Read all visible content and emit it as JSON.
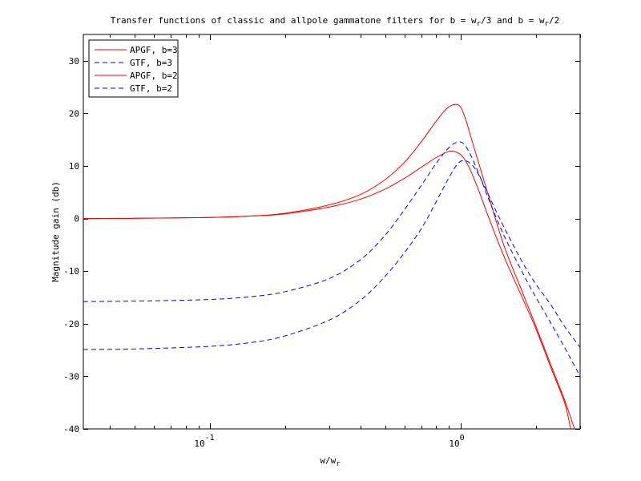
{
  "chart_data": {
    "type": "line",
    "title": "Transfer functions of classic and allpole gammatone filters for b = w_r/3 and b = w_r/2",
    "title_parts": {
      "pre": "Transfer functions of classic and allpole gammatone filters for b = w",
      "sub1": "r",
      "mid": "/3 and b = w",
      "sub2": "r",
      "post": "/2"
    },
    "xlabel": "w/w_r",
    "xlabel_parts": {
      "pre": "w/w",
      "sub": "r"
    },
    "ylabel": "Magnitude gain (db)",
    "xscale": "log",
    "xlim": [
      0.0313,
      3.0
    ],
    "ylim": [
      -40,
      35
    ],
    "grid": false,
    "legend_position": "upper left",
    "x_ticks": [
      {
        "value": 0.1,
        "base": "10",
        "exp": "-1"
      },
      {
        "value": 1.0,
        "base": "10",
        "exp": "0"
      }
    ],
    "y_ticks": [
      -40,
      -30,
      -20,
      -10,
      0,
      10,
      20,
      30
    ],
    "series": [
      {
        "name": "APGF, b=3",
        "color": "#ff0000",
        "dash": "solid",
        "x": [
          0.0313,
          0.05,
          0.1,
          0.15,
          0.2,
          0.3,
          0.4,
          0.5,
          0.6,
          0.7,
          0.8,
          0.88,
          0.95,
          1.0,
          1.05,
          1.1,
          1.2,
          1.3,
          1.5,
          1.8,
          2.0,
          2.3,
          2.6,
          2.85
        ],
        "values": [
          0.0,
          0.05,
          0.2,
          0.5,
          1.0,
          2.6,
          4.6,
          7.4,
          10.8,
          14.7,
          18.5,
          20.9,
          21.7,
          21.2,
          18.8,
          15.5,
          9.5,
          4.0,
          -5.5,
          -15.0,
          -20.5,
          -28.0,
          -34.5,
          -40.0
        ]
      },
      {
        "name": "GTF, b=3",
        "color": "#0000ff",
        "dash": "dashed",
        "x": [
          0.0313,
          0.05,
          0.1,
          0.15,
          0.2,
          0.3,
          0.4,
          0.5,
          0.6,
          0.7,
          0.8,
          0.9,
          0.97,
          1.03,
          1.1,
          1.2,
          1.3,
          1.5,
          1.8,
          2.0,
          2.3,
          2.6,
          3.0
        ],
        "values": [
          -15.8,
          -15.7,
          -15.4,
          -14.8,
          -13.9,
          -11.4,
          -7.8,
          -3.2,
          1.8,
          6.4,
          10.5,
          13.5,
          14.5,
          14.2,
          12.0,
          7.8,
          3.5,
          -3.5,
          -11.0,
          -15.0,
          -20.0,
          -24.5,
          -30.0
        ]
      },
      {
        "name": "APGF, b=2",
        "color": "#ff0000",
        "dash": "solid",
        "x": [
          0.0313,
          0.05,
          0.1,
          0.15,
          0.2,
          0.3,
          0.4,
          0.5,
          0.6,
          0.7,
          0.8,
          0.88,
          0.93,
          1.0,
          1.05,
          1.1,
          1.2,
          1.3,
          1.5,
          1.8,
          2.0,
          2.3,
          2.6,
          2.75
        ],
        "values": [
          0.0,
          0.05,
          0.2,
          0.5,
          0.9,
          2.2,
          3.7,
          5.6,
          7.7,
          9.8,
          11.6,
          12.6,
          12.8,
          12.2,
          10.9,
          9.0,
          4.5,
          0.0,
          -7.5,
          -16.0,
          -21.0,
          -28.5,
          -35.0,
          -40.0
        ]
      },
      {
        "name": "GTF, b=2",
        "color": "#0000ff",
        "dash": "dashed",
        "x": [
          0.0313,
          0.05,
          0.1,
          0.15,
          0.2,
          0.3,
          0.4,
          0.5,
          0.6,
          0.7,
          0.8,
          0.9,
          0.97,
          1.02,
          1.08,
          1.15,
          1.25,
          1.4,
          1.6,
          1.8,
          2.0,
          2.3,
          2.6,
          3.0
        ],
        "values": [
          -24.9,
          -24.8,
          -24.3,
          -23.5,
          -22.3,
          -19.3,
          -15.5,
          -11.0,
          -6.4,
          -1.8,
          3.2,
          7.8,
          10.3,
          11.0,
          10.7,
          9.3,
          6.0,
          1.0,
          -4.5,
          -9.0,
          -12.5,
          -16.5,
          -20.5,
          -24.5
        ]
      }
    ]
  },
  "legend": {
    "entries": [
      {
        "label": "APGF, b=3",
        "color": "#ff0000",
        "dash": "solid"
      },
      {
        "label": "GTF, b=3",
        "color": "#0000ff",
        "dash": "dashed"
      },
      {
        "label": "APGF, b=2",
        "color": "#ff0000",
        "dash": "solid"
      },
      {
        "label": "GTF, b=2",
        "color": "#0000ff",
        "dash": "dashed"
      }
    ]
  },
  "y_tick_labels": [
    "-40",
    "-30",
    "-20",
    "-10",
    "0",
    "10",
    "20",
    "30"
  ]
}
